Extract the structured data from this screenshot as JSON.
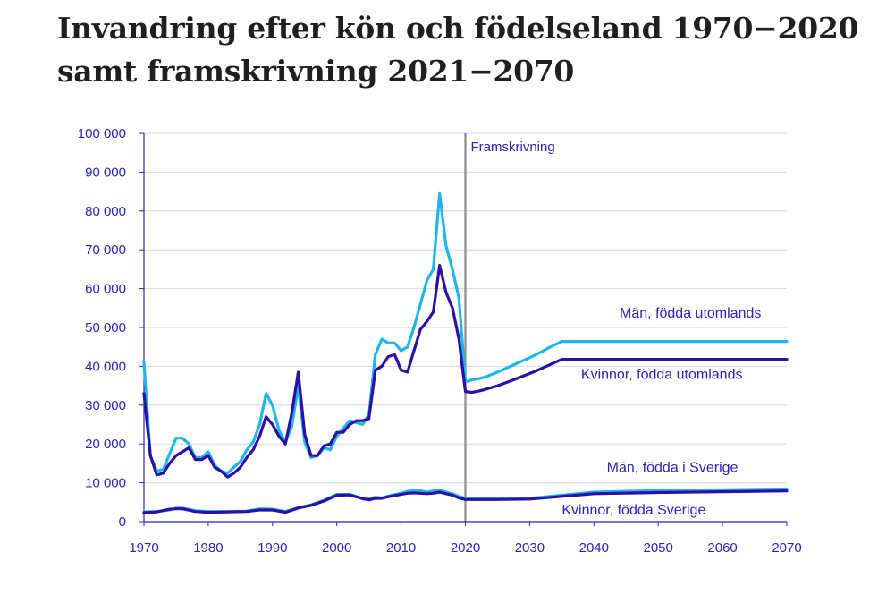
{
  "title": {
    "line1": "Invandring efter kön och födelseland 1970−2020",
    "line2": "samt framskrivning 2021−2070"
  },
  "colors": {
    "light": "#1fb5e8",
    "dark": "#2b0fa6",
    "axis": "#2b23b8",
    "grid": "#d4d4ee",
    "divider": "#8c8c8c"
  },
  "chart_data": {
    "type": "line",
    "xlim": [
      1970,
      2070
    ],
    "ylim": [
      0,
      100000
    ],
    "x_ticks": [
      "1970",
      "1980",
      "1990",
      "2000",
      "2010",
      "2020",
      "2030",
      "2040",
      "2050",
      "2060",
      "2070"
    ],
    "y_ticks": [
      "0",
      "10 000",
      "20 000",
      "30 000",
      "40 000",
      "50 000",
      "60 000",
      "70 000",
      "80 000",
      "90 000",
      "100 000"
    ],
    "divider": {
      "year": 2020,
      "label": "Framskrivning"
    },
    "series": [
      {
        "name": "Män, födda utomlands",
        "color": "light",
        "points": [
          [
            1970,
            41000
          ],
          [
            1971,
            17000
          ],
          [
            1972,
            13000
          ],
          [
            1973,
            13500
          ],
          [
            1974,
            17500
          ],
          [
            1975,
            21500
          ],
          [
            1976,
            21500
          ],
          [
            1977,
            20000
          ],
          [
            1978,
            16500
          ],
          [
            1979,
            16500
          ],
          [
            1980,
            18000
          ],
          [
            1981,
            14500
          ],
          [
            1982,
            13000
          ],
          [
            1983,
            12500
          ],
          [
            1984,
            14000
          ],
          [
            1985,
            15500
          ],
          [
            1986,
            18500
          ],
          [
            1987,
            20500
          ],
          [
            1988,
            25000
          ],
          [
            1989,
            33000
          ],
          [
            1990,
            30000
          ],
          [
            1991,
            23500
          ],
          [
            1992,
            20500
          ],
          [
            1993,
            24500
          ],
          [
            1994,
            35000
          ],
          [
            1995,
            20500
          ],
          [
            1996,
            16500
          ],
          [
            1997,
            17000
          ],
          [
            1998,
            19000
          ],
          [
            1999,
            18500
          ],
          [
            2000,
            22000
          ],
          [
            2001,
            24000
          ],
          [
            2002,
            26000
          ],
          [
            2003,
            25500
          ],
          [
            2004,
            25000
          ],
          [
            2005,
            27500
          ],
          [
            2006,
            43000
          ],
          [
            2007,
            47000
          ],
          [
            2008,
            46000
          ],
          [
            2009,
            46000
          ],
          [
            2010,
            44000
          ],
          [
            2011,
            45000
          ],
          [
            2012,
            50000
          ],
          [
            2013,
            56000
          ],
          [
            2014,
            62000
          ],
          [
            2015,
            65000
          ],
          [
            2016,
            84500
          ],
          [
            2017,
            71000
          ],
          [
            2018,
            65000
          ],
          [
            2019,
            57500
          ],
          [
            2020,
            36000
          ],
          [
            2021,
            36500
          ],
          [
            2022,
            36800
          ],
          [
            2023,
            37200
          ],
          [
            2025,
            38500
          ],
          [
            2027,
            40000
          ],
          [
            2029,
            41500
          ],
          [
            2031,
            43000
          ],
          [
            2033,
            44800
          ],
          [
            2035,
            46400
          ],
          [
            2040,
            46400
          ],
          [
            2050,
            46400
          ],
          [
            2060,
            46400
          ],
          [
            2070,
            46400
          ]
        ]
      },
      {
        "name": "Kvinnor, födda utomlands",
        "color": "dark",
        "points": [
          [
            1970,
            33000
          ],
          [
            1971,
            17000
          ],
          [
            1972,
            12000
          ],
          [
            1973,
            12500
          ],
          [
            1974,
            15000
          ],
          [
            1975,
            17000
          ],
          [
            1976,
            18000
          ],
          [
            1977,
            19000
          ],
          [
            1978,
            16000
          ],
          [
            1979,
            16000
          ],
          [
            1980,
            17000
          ],
          [
            1981,
            14000
          ],
          [
            1982,
            13000
          ],
          [
            1983,
            11500
          ],
          [
            1984,
            12500
          ],
          [
            1985,
            14000
          ],
          [
            1986,
            16500
          ],
          [
            1987,
            18500
          ],
          [
            1988,
            22000
          ],
          [
            1989,
            27000
          ],
          [
            1990,
            25000
          ],
          [
            1991,
            22000
          ],
          [
            1992,
            20000
          ],
          [
            1993,
            28000
          ],
          [
            1994,
            38500
          ],
          [
            1995,
            22500
          ],
          [
            1996,
            17000
          ],
          [
            1997,
            17000
          ],
          [
            1998,
            19500
          ],
          [
            1999,
            20000
          ],
          [
            2000,
            23000
          ],
          [
            2001,
            23000
          ],
          [
            2002,
            25000
          ],
          [
            2003,
            26000
          ],
          [
            2004,
            26000
          ],
          [
            2005,
            26500
          ],
          [
            2006,
            39000
          ],
          [
            2007,
            40000
          ],
          [
            2008,
            42500
          ],
          [
            2009,
            43000
          ],
          [
            2010,
            39000
          ],
          [
            2011,
            38500
          ],
          [
            2012,
            44000
          ],
          [
            2013,
            49500
          ],
          [
            2014,
            51500
          ],
          [
            2015,
            54000
          ],
          [
            2016,
            66000
          ],
          [
            2017,
            59000
          ],
          [
            2018,
            55000
          ],
          [
            2019,
            47000
          ],
          [
            2020,
            33500
          ],
          [
            2021,
            33300
          ],
          [
            2022,
            33600
          ],
          [
            2023,
            34000
          ],
          [
            2025,
            35000
          ],
          [
            2027,
            36200
          ],
          [
            2029,
            37500
          ],
          [
            2031,
            38800
          ],
          [
            2033,
            40300
          ],
          [
            2035,
            41800
          ],
          [
            2040,
            41800
          ],
          [
            2050,
            41800
          ],
          [
            2060,
            41800
          ],
          [
            2070,
            41800
          ]
        ]
      },
      {
        "name": "Män, födda i Sverige",
        "color": "light",
        "points": [
          [
            1970,
            2500
          ],
          [
            1972,
            2600
          ],
          [
            1974,
            3000
          ],
          [
            1975,
            3500
          ],
          [
            1976,
            3500
          ],
          [
            1978,
            2800
          ],
          [
            1980,
            2600
          ],
          [
            1983,
            2600
          ],
          [
            1986,
            2700
          ],
          [
            1988,
            3300
          ],
          [
            1990,
            3200
          ],
          [
            1992,
            2600
          ],
          [
            1994,
            3600
          ],
          [
            1996,
            4300
          ],
          [
            1998,
            5500
          ],
          [
            2000,
            7000
          ],
          [
            2002,
            7000
          ],
          [
            2004,
            6000
          ],
          [
            2005,
            5800
          ],
          [
            2006,
            6300
          ],
          [
            2007,
            6100
          ],
          [
            2008,
            6600
          ],
          [
            2010,
            7300
          ],
          [
            2011,
            7800
          ],
          [
            2012,
            8000
          ],
          [
            2013,
            8000
          ],
          [
            2014,
            7600
          ],
          [
            2015,
            7900
          ],
          [
            2016,
            8200
          ],
          [
            2017,
            7600
          ],
          [
            2018,
            7200
          ],
          [
            2019,
            6500
          ],
          [
            2020,
            6000
          ],
          [
            2022,
            5900
          ],
          [
            2025,
            5900
          ],
          [
            2030,
            6000
          ],
          [
            2035,
            6800
          ],
          [
            2040,
            7600
          ],
          [
            2050,
            8000
          ],
          [
            2060,
            8200
          ],
          [
            2070,
            8400
          ]
        ]
      },
      {
        "name": "Kvinnor, födda Sverige",
        "color": "dark",
        "points": [
          [
            1970,
            2300
          ],
          [
            1972,
            2500
          ],
          [
            1974,
            3200
          ],
          [
            1975,
            3300
          ],
          [
            1976,
            3300
          ],
          [
            1978,
            2600
          ],
          [
            1980,
            2400
          ],
          [
            1983,
            2500
          ],
          [
            1986,
            2600
          ],
          [
            1988,
            3000
          ],
          [
            1990,
            3000
          ],
          [
            1992,
            2400
          ],
          [
            1994,
            3500
          ],
          [
            1996,
            4200
          ],
          [
            1998,
            5300
          ],
          [
            2000,
            6800
          ],
          [
            2002,
            6900
          ],
          [
            2004,
            5900
          ],
          [
            2005,
            5600
          ],
          [
            2006,
            6000
          ],
          [
            2007,
            6000
          ],
          [
            2008,
            6400
          ],
          [
            2010,
            7000
          ],
          [
            2011,
            7300
          ],
          [
            2012,
            7400
          ],
          [
            2013,
            7300
          ],
          [
            2014,
            7200
          ],
          [
            2015,
            7300
          ],
          [
            2016,
            7600
          ],
          [
            2017,
            7200
          ],
          [
            2018,
            6800
          ],
          [
            2019,
            6100
          ],
          [
            2020,
            5700
          ],
          [
            2022,
            5700
          ],
          [
            2025,
            5700
          ],
          [
            2030,
            5800
          ],
          [
            2035,
            6500
          ],
          [
            2040,
            7200
          ],
          [
            2050,
            7500
          ],
          [
            2060,
            7700
          ],
          [
            2070,
            7900
          ]
        ]
      }
    ],
    "annotations": [
      {
        "text": "Män, födda utomlands",
        "series": 0
      },
      {
        "text": "Kvinnor, födda utomlands",
        "series": 1
      },
      {
        "text": "Män, födda i Sverige",
        "series": 2
      },
      {
        "text": "Kvinnor, födda Sverige",
        "series": 3
      }
    ]
  }
}
